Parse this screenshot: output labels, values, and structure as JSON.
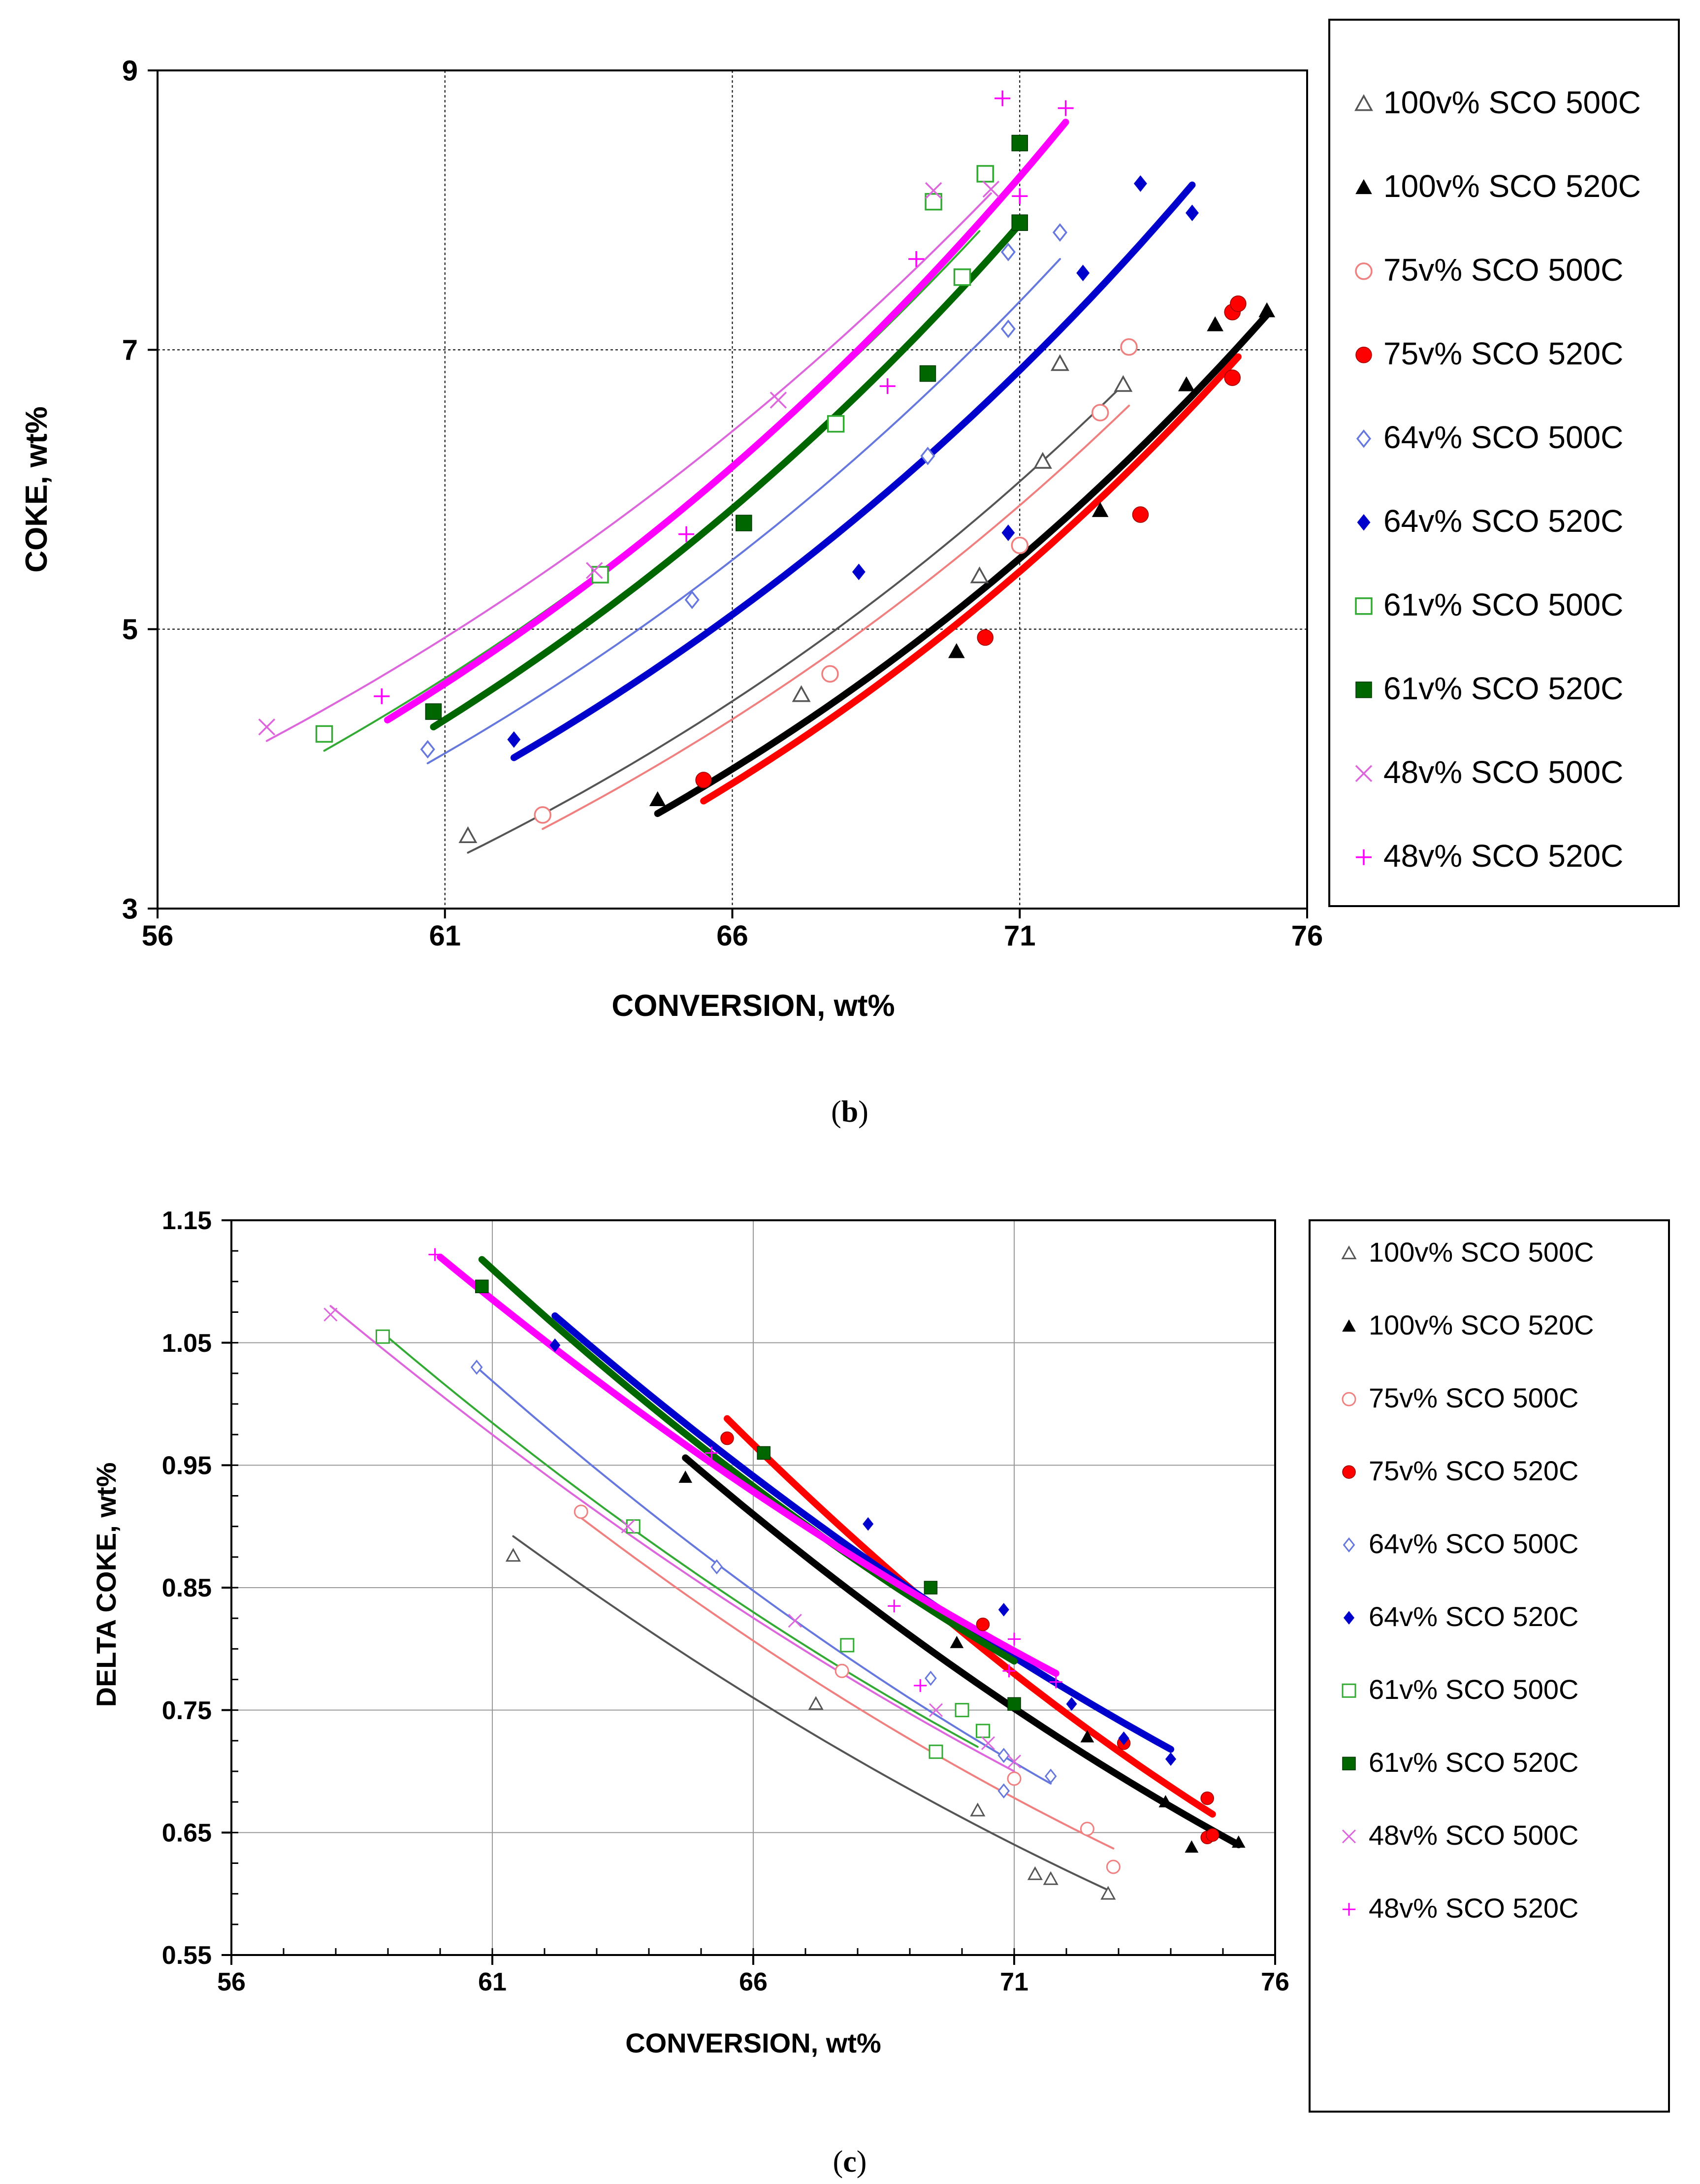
{
  "panels": [
    {
      "caption_open": "(",
      "caption_letter": "b",
      "caption_close": ")"
    },
    {
      "caption_open": "(",
      "caption_letter": "c",
      "caption_close": ")"
    }
  ],
  "chart_data": [
    {
      "type": "scatter",
      "title": "",
      "xlabel": "CONVERSION, wt%",
      "ylabel": "COKE, wt%",
      "xlim": [
        56,
        76
      ],
      "ylim": [
        3,
        9
      ],
      "xticks": [
        56,
        61,
        66,
        71,
        76
      ],
      "xtick_labels": [
        "56",
        "61",
        "66",
        "71",
        "76"
      ],
      "yticks": [
        3,
        5,
        7,
        9
      ],
      "ytick_labels": [
        "3",
        "5",
        "7",
        "9"
      ],
      "grid": true,
      "legend_position": "right",
      "series": [
        {
          "name": "100v% SCO 500C",
          "marker": "triangle-open",
          "color": "#555555",
          "points": [
            [
              61.4,
              3.52
            ],
            [
              67.2,
              4.53
            ],
            [
              70.3,
              5.38
            ],
            [
              71.4,
              6.2
            ],
            [
              71.7,
              6.9
            ],
            [
              72.8,
              6.75
            ]
          ],
          "fit": [
            [
              61.4,
              3.4
            ],
            [
              72.8,
              6.75
            ]
          ],
          "fit_width": "thin"
        },
        {
          "name": "100v% SCO 520C",
          "marker": "triangle-filled",
          "color": "#000000",
          "points": [
            [
              64.7,
              3.78
            ],
            [
              69.9,
              4.84
            ],
            [
              72.4,
              5.85
            ],
            [
              73.9,
              6.75
            ],
            [
              74.4,
              7.18
            ],
            [
              75.3,
              7.28
            ]
          ],
          "fit": [
            [
              64.7,
              3.68
            ],
            [
              75.3,
              7.25
            ]
          ],
          "fit_width": "thick"
        },
        {
          "name": "75v% SCO 500C",
          "marker": "circle-open",
          "color": "#f08080",
          "points": [
            [
              62.7,
              3.67
            ],
            [
              67.7,
              4.68
            ],
            [
              71.0,
              5.6
            ],
            [
              72.4,
              6.55
            ],
            [
              72.9,
              7.02
            ]
          ],
          "fit": [
            [
              62.7,
              3.57
            ],
            [
              72.9,
              6.6
            ]
          ],
          "fit_width": "thin"
        },
        {
          "name": "75v% SCO 520C",
          "marker": "circle-filled",
          "color": "#ff0000",
          "points": [
            [
              65.5,
              3.92
            ],
            [
              70.4,
              4.94
            ],
            [
              73.1,
              5.82
            ],
            [
              74.7,
              6.8
            ],
            [
              74.7,
              7.27
            ],
            [
              74.8,
              7.33
            ]
          ],
          "fit": [
            [
              65.5,
              3.77
            ],
            [
              74.8,
              6.95
            ]
          ],
          "fit_width": "thick"
        },
        {
          "name": "64v% SCO 500C",
          "marker": "diamond-open",
          "color": "#6677dd",
          "points": [
            [
              60.7,
              4.14
            ],
            [
              65.3,
              5.21
            ],
            [
              69.4,
              6.24
            ],
            [
              70.8,
              7.15
            ],
            [
              70.8,
              7.7
            ],
            [
              71.7,
              7.84
            ]
          ],
          "fit": [
            [
              60.7,
              4.04
            ],
            [
              71.7,
              7.65
            ]
          ],
          "fit_width": "thin"
        },
        {
          "name": "64v% SCO 520C",
          "marker": "diamond-filled",
          "color": "#0000cc",
          "points": [
            [
              62.2,
              4.21
            ],
            [
              68.2,
              5.41
            ],
            [
              70.8,
              5.69
            ],
            [
              72.1,
              7.55
            ],
            [
              73.1,
              8.19
            ],
            [
              74.0,
              7.98
            ]
          ],
          "fit": [
            [
              62.2,
              4.08
            ],
            [
              74.0,
              8.18
            ]
          ],
          "fit_width": "thick"
        },
        {
          "name": "61v% SCO 500C",
          "marker": "square-open",
          "color": "#33aa33",
          "points": [
            [
              58.9,
              4.25
            ],
            [
              63.7,
              5.39
            ],
            [
              67.8,
              6.47
            ],
            [
              69.5,
              8.06
            ],
            [
              70.0,
              7.52
            ],
            [
              70.4,
              8.26
            ]
          ],
          "fit": [
            [
              58.9,
              4.13
            ],
            [
              70.3,
              7.85
            ]
          ],
          "fit_width": "thin"
        },
        {
          "name": "61v% SCO 520C",
          "marker": "square-filled",
          "color": "#006600",
          "points": [
            [
              60.8,
              4.41
            ],
            [
              66.2,
              5.76
            ],
            [
              69.4,
              6.83
            ],
            [
              71.0,
              7.91
            ],
            [
              71.0,
              8.48
            ]
          ],
          "fit": [
            [
              60.8,
              4.3
            ],
            [
              71.0,
              7.9
            ]
          ],
          "fit_width": "thick"
        },
        {
          "name": "48v% SCO 500C",
          "marker": "x",
          "color": "#dd66dd",
          "points": [
            [
              57.9,
              4.3
            ],
            [
              63.6,
              5.42
            ],
            [
              66.8,
              6.64
            ],
            [
              69.5,
              8.14
            ],
            [
              70.5,
              8.15
            ]
          ],
          "fit": [
            [
              57.9,
              4.2
            ],
            [
              70.5,
              8.12
            ]
          ],
          "fit_width": "thin"
        },
        {
          "name": "48v% SCO 520C",
          "marker": "plus",
          "color": "#ff00ff",
          "points": [
            [
              59.9,
              4.52
            ],
            [
              65.2,
              5.68
            ],
            [
              68.7,
              6.74
            ],
            [
              69.2,
              7.65
            ],
            [
              70.7,
              8.8
            ],
            [
              71.0,
              8.1
            ],
            [
              71.8,
              8.73
            ]
          ],
          "fit": [
            [
              60.0,
              4.35
            ],
            [
              71.8,
              8.63
            ]
          ],
          "fit_width": "thick"
        }
      ]
    },
    {
      "type": "scatter",
      "title": "",
      "xlabel": "CONVERSION, wt%",
      "ylabel": "DELTA COKE, wt%",
      "xlim": [
        56,
        76
      ],
      "ylim": [
        0.55,
        1.15
      ],
      "xticks": [
        56,
        61,
        66,
        71,
        76
      ],
      "xtick_labels": [
        "56",
        "61",
        "66",
        "71",
        "76"
      ],
      "yticks": [
        0.55,
        0.65,
        0.75,
        0.85,
        0.95,
        1.05,
        1.15
      ],
      "ytick_labels": [
        "0.55",
        "0.65",
        "0.75",
        "0.85",
        "0.95",
        "1.05",
        "1.15"
      ],
      "grid": true,
      "legend_position": "right",
      "series": [
        {
          "name": "100v% SCO 500C",
          "marker": "triangle-open",
          "color": "#555555",
          "points": [
            [
              61.4,
              0.876
            ],
            [
              67.2,
              0.755
            ],
            [
              70.3,
              0.668
            ],
            [
              71.4,
              0.616
            ],
            [
              71.7,
              0.612
            ],
            [
              72.8,
              0.6
            ]
          ],
          "fit": [
            [
              61.4,
              0.892
            ],
            [
              72.8,
              0.603
            ]
          ],
          "fit_width": "thin"
        },
        {
          "name": "100v% SCO 520C",
          "marker": "triangle-filled",
          "color": "#000000",
          "points": [
            [
              64.7,
              0.94
            ],
            [
              69.9,
              0.805
            ],
            [
              72.4,
              0.728
            ],
            [
              73.9,
              0.675
            ],
            [
              74.4,
              0.638
            ],
            [
              75.3,
              0.642
            ]
          ],
          "fit": [
            [
              64.7,
              0.956
            ],
            [
              75.3,
              0.64
            ]
          ],
          "fit_width": "thick"
        },
        {
          "name": "75v% SCO 500C",
          "marker": "circle-open",
          "color": "#f08080",
          "points": [
            [
              62.7,
              0.912
            ],
            [
              67.7,
              0.782
            ],
            [
              71.0,
              0.694
            ],
            [
              72.4,
              0.653
            ],
            [
              72.9,
              0.622
            ]
          ],
          "fit": [
            [
              62.7,
              0.907
            ],
            [
              72.9,
              0.637
            ]
          ],
          "fit_width": "thin"
        },
        {
          "name": "75v% SCO 520C",
          "marker": "circle-filled",
          "color": "#ff0000",
          "points": [
            [
              65.5,
              0.972
            ],
            [
              70.4,
              0.82
            ],
            [
              73.1,
              0.723
            ],
            [
              74.7,
              0.678
            ],
            [
              74.7,
              0.646
            ],
            [
              74.8,
              0.648
            ]
          ],
          "fit": [
            [
              65.5,
              0.988
            ],
            [
              74.8,
              0.665
            ]
          ],
          "fit_width": "thick"
        },
        {
          "name": "64v% SCO 500C",
          "marker": "diamond-open",
          "color": "#6677dd",
          "points": [
            [
              60.7,
              1.03
            ],
            [
              65.3,
              0.867
            ],
            [
              69.4,
              0.776
            ],
            [
              70.8,
              0.713
            ],
            [
              70.8,
              0.684
            ],
            [
              71.7,
              0.696
            ]
          ],
          "fit": [
            [
              60.7,
              1.03
            ],
            [
              71.7,
              0.69
            ]
          ],
          "fit_width": "thin"
        },
        {
          "name": "64v% SCO 520C",
          "marker": "diamond-filled",
          "color": "#0000cc",
          "points": [
            [
              62.2,
              1.048
            ],
            [
              68.2,
              0.902
            ],
            [
              70.8,
              0.832
            ],
            [
              72.1,
              0.755
            ],
            [
              73.1,
              0.727
            ],
            [
              74.0,
              0.71
            ]
          ],
          "fit": [
            [
              62.2,
              1.072
            ],
            [
              74.0,
              0.718
            ]
          ],
          "fit_width": "thick"
        },
        {
          "name": "61v% SCO 500C",
          "marker": "square-open",
          "color": "#33aa33",
          "points": [
            [
              58.9,
              1.055
            ],
            [
              63.7,
              0.9
            ],
            [
              67.8,
              0.803
            ],
            [
              69.5,
              0.716
            ],
            [
              70.0,
              0.75
            ],
            [
              70.4,
              0.733
            ]
          ],
          "fit": [
            [
              58.9,
              1.058
            ],
            [
              70.3,
              0.72
            ]
          ],
          "fit_width": "thin"
        },
        {
          "name": "61v% SCO 520C",
          "marker": "square-filled",
          "color": "#006600",
          "points": [
            [
              60.8,
              1.096
            ],
            [
              66.2,
              0.96
            ],
            [
              69.4,
              0.85
            ],
            [
              71.0,
              0.755
            ]
          ],
          "fit": [
            [
              60.8,
              1.118
            ],
            [
              71.0,
              0.79
            ]
          ],
          "fit_width": "thick"
        },
        {
          "name": "48v% SCO 500C",
          "marker": "x",
          "color": "#dd66dd",
          "points": [
            [
              57.9,
              1.073
            ],
            [
              63.6,
              0.9
            ],
            [
              66.8,
              0.823
            ],
            [
              69.5,
              0.75
            ],
            [
              70.5,
              0.723
            ],
            [
              71.0,
              0.708
            ]
          ],
          "fit": [
            [
              57.9,
              1.08
            ],
            [
              71.0,
              0.7
            ]
          ],
          "fit_width": "thin"
        },
        {
          "name": "48v% SCO 520C",
          "marker": "plus",
          "color": "#ff00ff",
          "points": [
            [
              59.9,
              1.122
            ],
            [
              65.2,
              0.96
            ],
            [
              68.7,
              0.835
            ],
            [
              69.2,
              0.77
            ],
            [
              70.9,
              0.782
            ],
            [
              71.0,
              0.808
            ],
            [
              71.8,
              0.773
            ]
          ],
          "fit": [
            [
              60.0,
              1.12
            ],
            [
              71.8,
              0.78
            ]
          ],
          "fit_width": "thick"
        }
      ]
    }
  ]
}
